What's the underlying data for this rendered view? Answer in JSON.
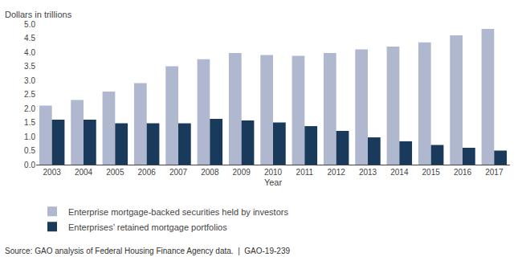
{
  "chart_data": {
    "type": "bar",
    "categories": [
      "2003",
      "2004",
      "2005",
      "2006",
      "2007",
      "2008",
      "2009",
      "2010",
      "2011",
      "2012",
      "2013",
      "2014",
      "2015",
      "2016",
      "2017"
    ],
    "series": [
      {
        "name": "Enterprise mortgage-backed securities held by investors",
        "color": "#b0b8d0",
        "values": [
          2.1,
          2.3,
          2.6,
          2.9,
          3.5,
          3.75,
          3.97,
          3.9,
          3.87,
          3.97,
          4.1,
          4.2,
          4.35,
          4.6,
          4.83
        ]
      },
      {
        "name": "Enterprises’ retained mortgage portfolios",
        "color": "#1a3a5c",
        "values": [
          1.6,
          1.6,
          1.47,
          1.47,
          1.47,
          1.63,
          1.57,
          1.5,
          1.37,
          1.2,
          0.97,
          0.83,
          0.7,
          0.6,
          0.5
        ]
      }
    ],
    "xlabel": "Year",
    "ylabel": "Dollars in trillions",
    "ylim": [
      0,
      5.0
    ],
    "yticks": [
      {
        "value": 0,
        "label": "0.0"
      },
      0.5,
      {
        "value": 1.0,
        "label": "1.0"
      },
      1.5,
      {
        "value": 2.0,
        "label": "2.0"
      },
      2.5,
      {
        "value": 3.0,
        "label": "3.0"
      },
      3.5,
      {
        "value": 4.0,
        "label": "4.0"
      },
      4.5,
      {
        "value": 5.0,
        "label": "5.0"
      }
    ],
    "grid": false,
    "legend": "bottom left",
    "annotations": [
      "Source: GAO analysis of Federal Housing Finance Agency data.  |  GAO-19-239"
    ]
  }
}
